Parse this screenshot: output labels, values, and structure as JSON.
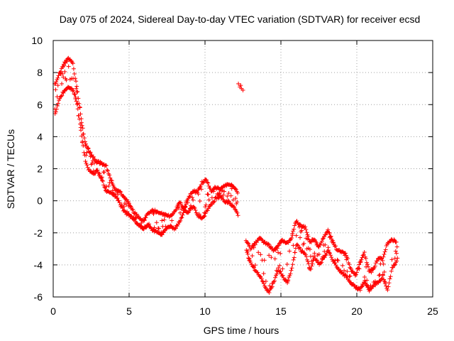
{
  "chart_data": {
    "type": "scatter",
    "title": "Day 075 of 2024, Sidereal Day-to-day VTEC variation (SDTVAR) for receiver ecsd",
    "xlabel": "GPS time / hours",
    "ylabel": "SDTVAR / TECUs",
    "xlim": [
      0,
      25
    ],
    "ylim": [
      -6,
      10
    ],
    "x_ticks": [
      "0",
      "5",
      "10",
      "15",
      "20",
      "25"
    ],
    "y_ticks": [
      "-6",
      "-4",
      "-2",
      "0",
      "2",
      "4",
      "6",
      "8",
      "10"
    ],
    "grid": true,
    "marker": "+",
    "color": "#ff0000",
    "series": [
      {
        "name": "SDTVAR",
        "upper": [
          [
            0.1,
            7.3
          ],
          [
            0.4,
            8.0
          ],
          [
            0.7,
            8.6
          ],
          [
            1.0,
            9.0
          ],
          [
            1.3,
            8.6
          ],
          [
            1.5,
            7.5
          ],
          [
            1.7,
            6.2
          ],
          [
            1.9,
            4.8
          ],
          [
            2.1,
            3.8
          ],
          [
            2.3,
            3.3
          ],
          [
            2.6,
            2.8
          ],
          [
            2.9,
            2.5
          ],
          [
            3.2,
            2.4
          ],
          [
            3.5,
            2.2
          ],
          [
            3.8,
            1.4
          ],
          [
            4.1,
            0.8
          ],
          [
            4.4,
            0.6
          ],
          [
            4.7,
            0.3
          ],
          [
            5.0,
            -0.1
          ],
          [
            5.3,
            -0.6
          ],
          [
            5.6,
            -0.9
          ],
          [
            5.9,
            -1.2
          ],
          [
            6.2,
            -0.8
          ],
          [
            6.5,
            -0.5
          ],
          [
            6.8,
            -0.6
          ],
          [
            7.1,
            -0.7
          ],
          [
            7.4,
            -0.8
          ],
          [
            7.7,
            -0.9
          ],
          [
            8.0,
            -0.6
          ],
          [
            8.3,
            0.0
          ],
          [
            8.6,
            -0.4
          ],
          [
            8.9,
            0.2
          ],
          [
            9.2,
            0.7
          ],
          [
            9.5,
            0.6
          ],
          [
            9.8,
            1.2
          ],
          [
            10.1,
            1.4
          ],
          [
            10.4,
            0.7
          ],
          [
            10.7,
            0.9
          ],
          [
            11.0,
            0.8
          ],
          [
            11.3,
            1.0
          ],
          [
            11.6,
            1.1
          ],
          [
            11.9,
            1.0
          ],
          [
            12.2,
            0.4
          ]
        ],
        "lower": [
          [
            0.1,
            5.3
          ],
          [
            0.4,
            6.3
          ],
          [
            0.7,
            6.8
          ],
          [
            1.0,
            7.0
          ],
          [
            1.3,
            6.8
          ],
          [
            1.5,
            6.2
          ],
          [
            1.7,
            5.0
          ],
          [
            1.9,
            3.6
          ],
          [
            2.1,
            2.4
          ],
          [
            2.3,
            1.9
          ],
          [
            2.6,
            1.6
          ],
          [
            2.9,
            1.8
          ],
          [
            3.2,
            1.2
          ],
          [
            3.5,
            0.5
          ],
          [
            3.8,
            0.4
          ],
          [
            4.1,
            0.2
          ],
          [
            4.4,
            -0.3
          ],
          [
            4.7,
            -0.8
          ],
          [
            5.0,
            -1.0
          ],
          [
            5.3,
            -1.2
          ],
          [
            5.6,
            -1.6
          ],
          [
            5.9,
            -1.8
          ],
          [
            6.2,
            -1.6
          ],
          [
            6.5,
            -1.9
          ],
          [
            6.8,
            -2.0
          ],
          [
            7.1,
            -2.2
          ],
          [
            7.4,
            -1.8
          ],
          [
            7.7,
            -1.7
          ],
          [
            8.0,
            -1.8
          ],
          [
            8.3,
            -1.4
          ],
          [
            8.6,
            -0.7
          ],
          [
            8.9,
            -0.8
          ],
          [
            9.2,
            -0.4
          ],
          [
            9.5,
            -1.0
          ],
          [
            9.8,
            -1.2
          ],
          [
            10.1,
            -0.7
          ],
          [
            10.4,
            -0.3
          ],
          [
            10.7,
            0.1
          ],
          [
            11.0,
            0.2
          ],
          [
            11.3,
            -0.1
          ],
          [
            11.6,
            -0.2
          ],
          [
            11.9,
            -0.5
          ],
          [
            12.2,
            -1.0
          ],
          [
            12.5,
            -1.6
          ]
        ],
        "cluster": [
          [
            12.2,
            7.3
          ],
          [
            12.3,
            7.1
          ],
          [
            12.4,
            7.0
          ],
          [
            12.5,
            6.9
          ],
          [
            12.35,
            7.2
          ]
        ],
        "late_upper": [
          [
            12.7,
            -2.4
          ],
          [
            13.0,
            -2.9
          ],
          [
            13.3,
            -2.6
          ],
          [
            13.6,
            -2.3
          ],
          [
            13.9,
            -2.5
          ],
          [
            14.2,
            -2.7
          ],
          [
            14.5,
            -3.0
          ],
          [
            14.8,
            -2.7
          ],
          [
            15.1,
            -2.4
          ],
          [
            15.4,
            -2.6
          ],
          [
            15.7,
            -2.2
          ],
          [
            16.0,
            -1.2
          ],
          [
            16.3,
            -1.5
          ],
          [
            16.6,
            -1.6
          ],
          [
            16.9,
            -2.5
          ],
          [
            17.2,
            -2.3
          ],
          [
            17.5,
            -2.8
          ],
          [
            17.8,
            -2.2
          ],
          [
            18.1,
            -1.8
          ],
          [
            18.4,
            -2.4
          ],
          [
            18.7,
            -3.0
          ],
          [
            19.0,
            -3.1
          ],
          [
            19.3,
            -3.3
          ],
          [
            19.6,
            -4.2
          ],
          [
            19.9,
            -4.6
          ],
          [
            20.2,
            -3.8
          ],
          [
            20.5,
            -3.2
          ],
          [
            20.8,
            -4.3
          ],
          [
            21.1,
            -4.2
          ],
          [
            21.4,
            -3.5
          ],
          [
            21.7,
            -3.6
          ],
          [
            22.0,
            -2.6
          ],
          [
            22.3,
            -2.3
          ],
          [
            22.6,
            -2.5
          ],
          [
            22.7,
            -3.0
          ]
        ],
        "late_lower": [
          [
            12.7,
            -3.2
          ],
          [
            13.0,
            -4.0
          ],
          [
            13.3,
            -4.4
          ],
          [
            13.6,
            -4.8
          ],
          [
            13.9,
            -5.4
          ],
          [
            14.2,
            -5.8
          ],
          [
            14.5,
            -5.2
          ],
          [
            14.8,
            -4.3
          ],
          [
            15.1,
            -4.8
          ],
          [
            15.4,
            -5.2
          ],
          [
            15.7,
            -4.3
          ],
          [
            16.0,
            -2.8
          ],
          [
            16.3,
            -3.2
          ],
          [
            16.6,
            -3.4
          ],
          [
            16.9,
            -4.4
          ],
          [
            17.2,
            -3.6
          ],
          [
            17.5,
            -4.1
          ],
          [
            17.8,
            -3.6
          ],
          [
            18.1,
            -3.2
          ],
          [
            18.4,
            -3.8
          ],
          [
            18.7,
            -4.2
          ],
          [
            19.0,
            -4.6
          ],
          [
            19.3,
            -4.8
          ],
          [
            19.6,
            -5.2
          ],
          [
            19.9,
            -5.5
          ],
          [
            20.2,
            -5.6
          ],
          [
            20.5,
            -5.1
          ],
          [
            20.8,
            -5.7
          ],
          [
            21.1,
            -5.3
          ],
          [
            21.4,
            -5.2
          ],
          [
            21.7,
            -4.8
          ],
          [
            22.0,
            -5.6
          ],
          [
            22.3,
            -4.3
          ],
          [
            22.6,
            -3.8
          ],
          [
            22.7,
            -3.6
          ]
        ]
      }
    ]
  }
}
